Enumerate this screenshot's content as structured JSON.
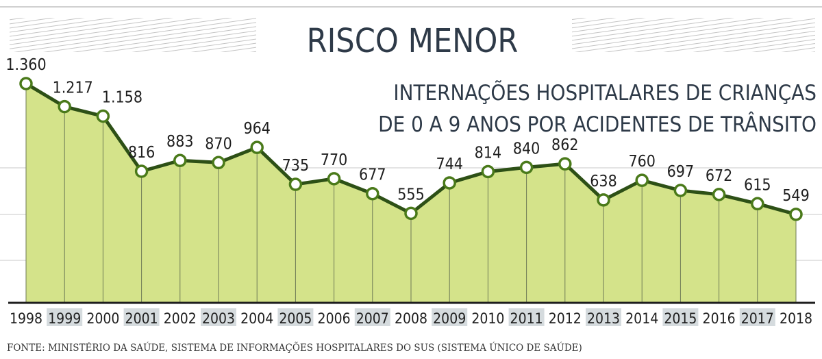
{
  "chart_data": {
    "type": "area",
    "title": "RISCO MENOR",
    "subtitle_line1": "INTERNAÇÕES HOSPITALARES DE CRIANÇAS",
    "subtitle_line2": "DE 0 A 9 ANOS POR ACIDENTES DE TRÂNSITO",
    "categories": [
      "1998",
      "1999",
      "2000",
      "2001",
      "2002",
      "2003",
      "2004",
      "2005",
      "2006",
      "2007",
      "2008",
      "2009",
      "2010",
      "2011",
      "2012",
      "2013",
      "2014",
      "2015",
      "2016",
      "2017",
      "2018"
    ],
    "values": [
      1360,
      1217,
      1158,
      816,
      883,
      870,
      964,
      735,
      770,
      677,
      555,
      744,
      814,
      840,
      862,
      638,
      760,
      697,
      672,
      615,
      549
    ],
    "value_labels": [
      "1.360",
      "1.217",
      "1.158",
      "816",
      "883",
      "870",
      "964",
      "735",
      "770",
      "677",
      "555",
      "744",
      "814",
      "840",
      "862",
      "638",
      "760",
      "697",
      "672",
      "615",
      "549"
    ],
    "ylim": [
      0,
      1450
    ],
    "grid": true,
    "source": "FONTE: MINISTÉRIO DA SAÚDE, SISTEMA DE INFORMAÇÕES HOSPITALARES DO SUS (SISTEMA ÚNICO DE SAÚDE)",
    "colors": {
      "line": "#2d5016",
      "fill": "#d4e38a",
      "marker_fill": "#ffffff",
      "marker_stroke": "#4a7a1a",
      "year_highlight": "#d5dbde",
      "text": "#1f1f1f",
      "title_text": "#2e3a48"
    }
  }
}
